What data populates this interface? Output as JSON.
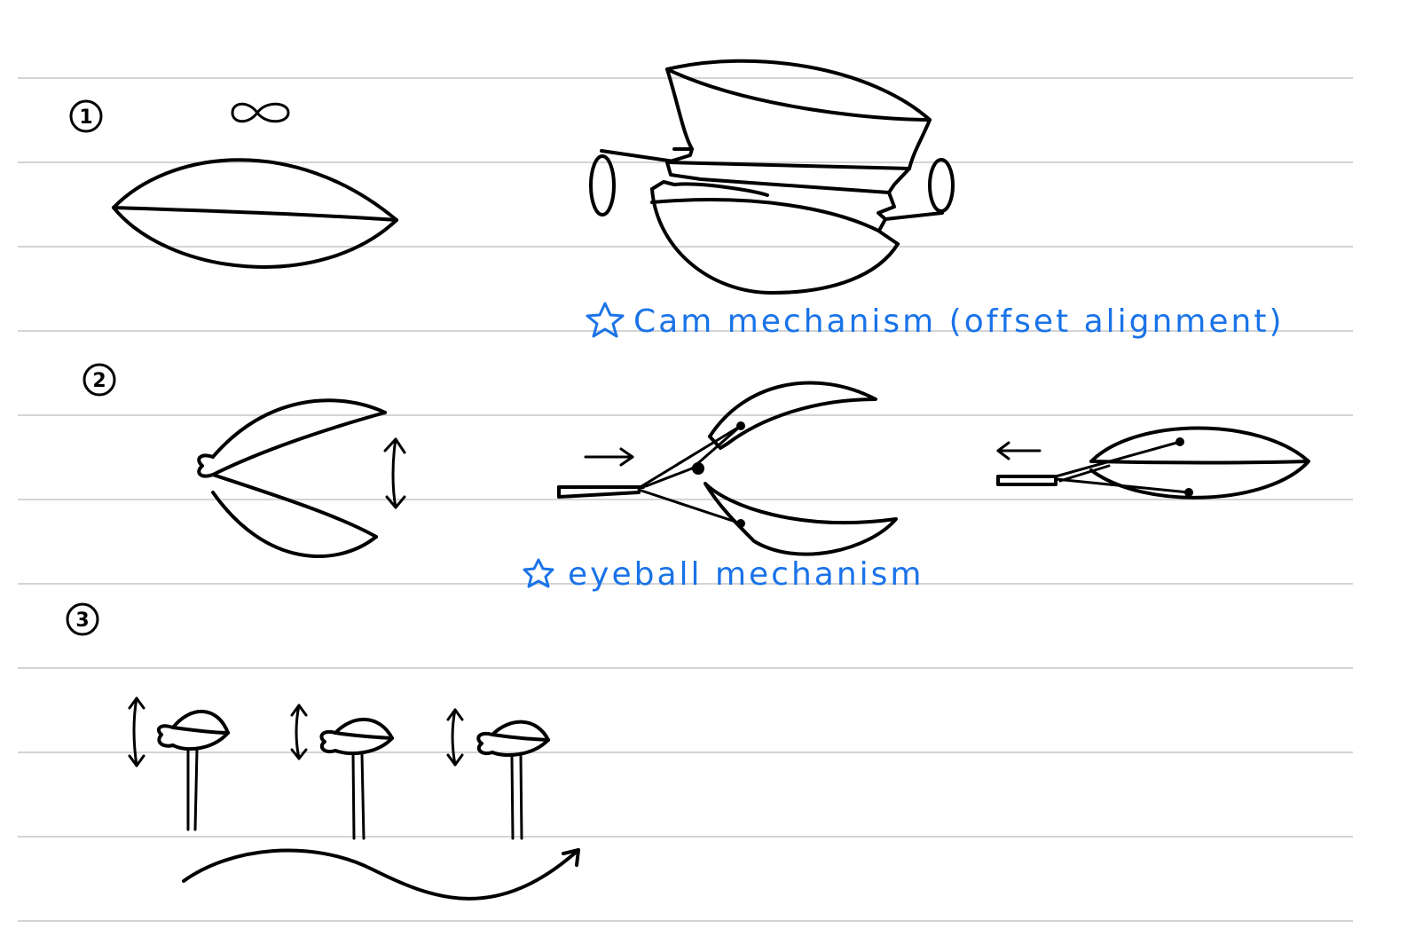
{
  "steps": [
    "1",
    "2",
    "3"
  ],
  "notes": {
    "cam": "Cam mechanism (offset alignment)",
    "eyeball": "eyeball mechanism"
  },
  "colors": {
    "ink": "#000000",
    "annotation": "#1a73e8",
    "rule": "#d4d4d4"
  },
  "icons": {
    "note_marker": "star-icon",
    "motion": "arrow-icon",
    "symbol": "infinity-icon"
  }
}
